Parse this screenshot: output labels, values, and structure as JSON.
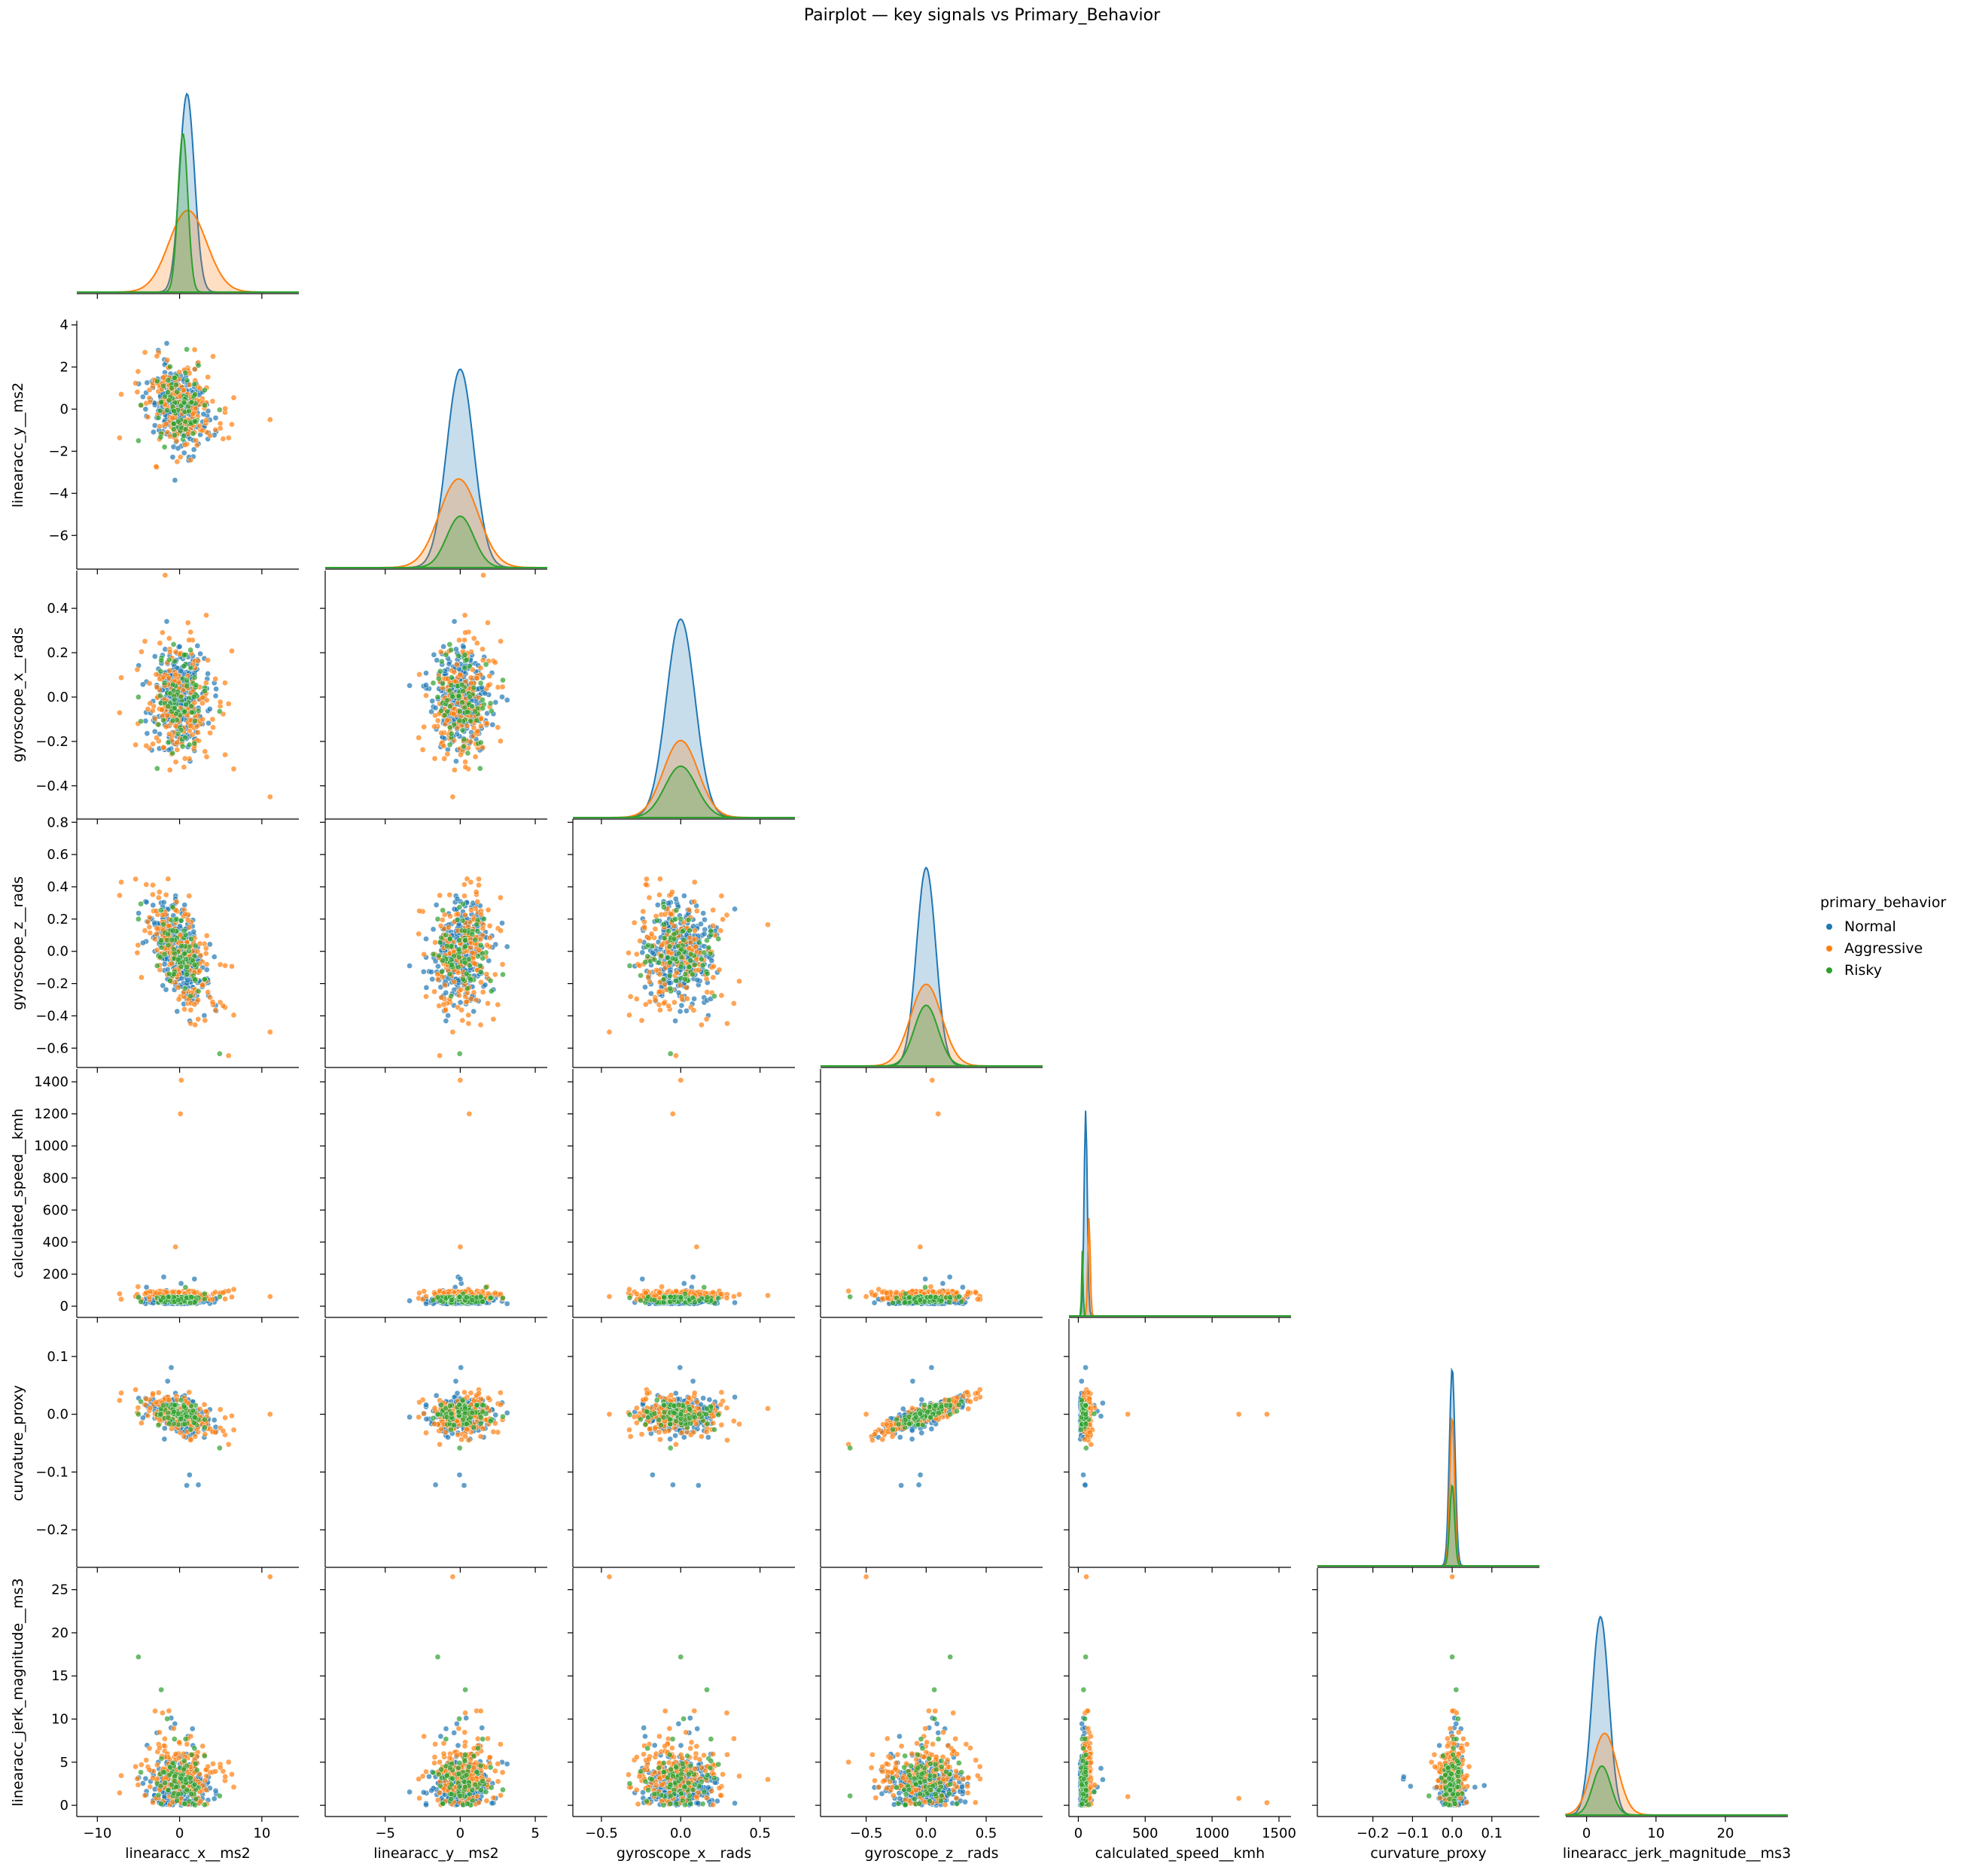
{
  "chart_data": {
    "type": "pairplot",
    "title": "Pairplot — key signals vs Primary_Behavior",
    "hue": "primary_behavior",
    "legend": {
      "title": "primary_behavior",
      "position": "right",
      "entries": [
        {
          "label": "Normal",
          "color": "#1f77b4"
        },
        {
          "label": "Aggressive",
          "color": "#ff7f0e"
        },
        {
          "label": "Risky",
          "color": "#2ca02c"
        }
      ]
    },
    "variables": [
      {
        "name": "linearacc_x__ms2",
        "lim": [
          -12.5,
          14.5
        ],
        "ticks": [
          -10,
          0,
          10
        ],
        "tick_labels": [
          "−10",
          "0",
          "10"
        ],
        "kde": {
          "Normal": [
            0.9,
            0.9,
            0.85
          ],
          "Aggressive": [
            1.0,
            2.3,
            0.35
          ],
          "Risky": [
            0.4,
            0.6,
            0.68
          ]
        }
      },
      {
        "name": "linearacc_y__ms2",
        "lim": [
          -7.6,
          4.2
        ],
        "ticks": [
          -6,
          -4,
          -2,
          0,
          2,
          4
        ],
        "tick_labels": [
          "−6",
          "−4",
          "−2",
          "0",
          "2",
          "4"
        ],
        "x_ticks": [
          -5,
          0,
          5
        ],
        "x_tick_labels": [
          "−5",
          "0",
          "5"
        ],
        "x_lim": [
          -9.0,
          5.8
        ],
        "kde": {
          "Normal": [
            0.0,
            0.9,
            0.85
          ],
          "Aggressive": [
            -0.1,
            1.3,
            0.38
          ],
          "Risky": [
            0.0,
            0.9,
            0.22
          ]
        }
      },
      {
        "name": "gyroscope_x__rads",
        "lim": [
          -0.55,
          0.57
        ],
        "ticks": [
          -0.4,
          -0.2,
          0.0,
          0.2,
          0.4
        ],
        "tick_labels": [
          "−0.4",
          "−0.2",
          "0.0",
          "0.2",
          "0.4"
        ],
        "x_ticks": [
          -0.5,
          0.0,
          0.5
        ],
        "x_tick_labels": [
          "−0.5",
          "0.0",
          "0.5"
        ],
        "x_lim": [
          -0.68,
          0.72
        ],
        "kde": {
          "Normal": [
            0.0,
            0.09,
            0.85
          ],
          "Aggressive": [
            0.0,
            0.11,
            0.33
          ],
          "Risky": [
            0.0,
            0.1,
            0.22
          ]
        }
      },
      {
        "name": "gyroscope_z__rads",
        "lim": [
          -0.72,
          0.82
        ],
        "ticks": [
          -0.6,
          -0.4,
          -0.2,
          0.0,
          0.2,
          0.4,
          0.6,
          0.8
        ],
        "tick_labels": [
          "−0.6",
          "−0.4",
          "−0.2",
          "0.0",
          "0.2",
          "0.4",
          "0.6",
          "0.8"
        ],
        "x_ticks": [
          -0.5,
          0.0,
          0.5
        ],
        "x_tick_labels": [
          "−0.5",
          "0.0",
          "0.5"
        ],
        "x_lim": [
          -0.88,
          0.97
        ],
        "kde": {
          "Normal": [
            0.0,
            0.08,
            0.85
          ],
          "Aggressive": [
            0.0,
            0.13,
            0.35
          ],
          "Risky": [
            0.0,
            0.1,
            0.26
          ]
        }
      },
      {
        "name": "calculated_speed__kmh",
        "lim": [
          -70,
          1480
        ],
        "ticks": [
          0,
          200,
          400,
          600,
          800,
          1000,
          1200,
          1400
        ],
        "tick_labels": [
          "0",
          "200",
          "400",
          "600",
          "800",
          "1000",
          "1200",
          "1400"
        ],
        "x_ticks": [
          0,
          500,
          1000,
          1500
        ],
        "x_tick_labels": [
          "0",
          "500",
          "1000",
          "1500"
        ],
        "x_lim": [
          -70,
          1590
        ],
        "kde": {
          "Normal": [
            55,
            12,
            0.88
          ],
          "Aggressive": [
            80,
            9,
            0.42
          ],
          "Risky": [
            30,
            5,
            0.28
          ]
        }
      },
      {
        "name": "curvature_proxy",
        "lim": [
          -0.265,
          0.165
        ],
        "ticks": [
          -0.2,
          -0.1,
          0.0,
          0.1
        ],
        "tick_labels": [
          "−0.2",
          "−0.1",
          "0.0",
          "0.1"
        ],
        "x_ticks": [
          -0.2,
          -0.1,
          0.0,
          0.1
        ],
        "x_tick_labels": [
          "−0.2",
          "−0.1",
          "0.0",
          "0.1"
        ],
        "x_lim": [
          -0.34,
          0.22
        ],
        "kde": {
          "Normal": [
            0.0,
            0.007,
            0.85
          ],
          "Aggressive": [
            0.0,
            0.006,
            0.64
          ],
          "Risky": [
            0.0,
            0.006,
            0.35
          ]
        }
      },
      {
        "name": "linearacc_jerk_magnitude__ms3",
        "lim": [
          -1.3,
          27.5
        ],
        "ticks": [
          0,
          5,
          10,
          15,
          20,
          25
        ],
        "tick_labels": [
          "0",
          "5",
          "10",
          "15",
          "20",
          "25"
        ],
        "x_ticks": [
          0,
          10,
          20
        ],
        "x_tick_labels": [
          "0",
          "10",
          "20"
        ],
        "x_lim": [
          -3.0,
          29.0
        ],
        "kde": {
          "Normal": [
            2.0,
            1.2,
            0.85
          ],
          "Aggressive": [
            2.6,
            1.8,
            0.35
          ],
          "Risky": [
            2.2,
            1.3,
            0.21
          ]
        }
      }
    ],
    "outliers": {
      "calculated_speed__kmh": [
        {
          "value": 1410,
          "with": {
            "linearacc_x__ms2": 0.2,
            "linearacc_y__ms2": 0.0,
            "gyroscope_x__rads": 0.0,
            "gyroscope_z__rads": 0.05,
            "curvature_proxy": 0.0,
            "linearacc_jerk_magnitude__ms3": 0.3
          },
          "group": "Aggressive"
        },
        {
          "value": 1200,
          "with": {
            "linearacc_x__ms2": 0.1,
            "linearacc_y__ms2": 0.6,
            "gyroscope_x__rads": -0.05,
            "gyroscope_z__rads": 0.1,
            "curvature_proxy": 0.0,
            "linearacc_jerk_magnitude__ms3": 0.8
          },
          "group": "Aggressive"
        },
        {
          "value": 370,
          "with": {
            "linearacc_x__ms2": -0.5,
            "linearacc_y__ms2": 0.0,
            "gyroscope_x__rads": 0.1,
            "gyroscope_z__rads": -0.05,
            "curvature_proxy": 0.0,
            "linearacc_jerk_magnitude__ms3": 1.0
          },
          "group": "Aggressive"
        }
      ],
      "linearacc_jerk_magnitude__ms3": [
        {
          "value": 26.5,
          "with": {
            "linearacc_x__ms2": 11.0,
            "linearacc_y__ms2": -0.5,
            "gyroscope_x__rads": -0.45,
            "gyroscope_z__rads": -0.5,
            "calculated_speed__kmh": 60,
            "curvature_proxy": 0.0
          },
          "group": "Aggressive"
        },
        {
          "value": 17.2,
          "with": {
            "linearacc_x__ms2": -5.0,
            "linearacc_y__ms2": -1.5,
            "gyroscope_x__rads": 0.0,
            "gyroscope_z__rads": 0.2,
            "calculated_speed__kmh": 55,
            "curvature_proxy": 0.0
          },
          "group": "Risky"
        }
      ]
    },
    "sample_points_per_group": {
      "Normal": 320,
      "Aggressive": 180,
      "Risky": 80
    }
  }
}
